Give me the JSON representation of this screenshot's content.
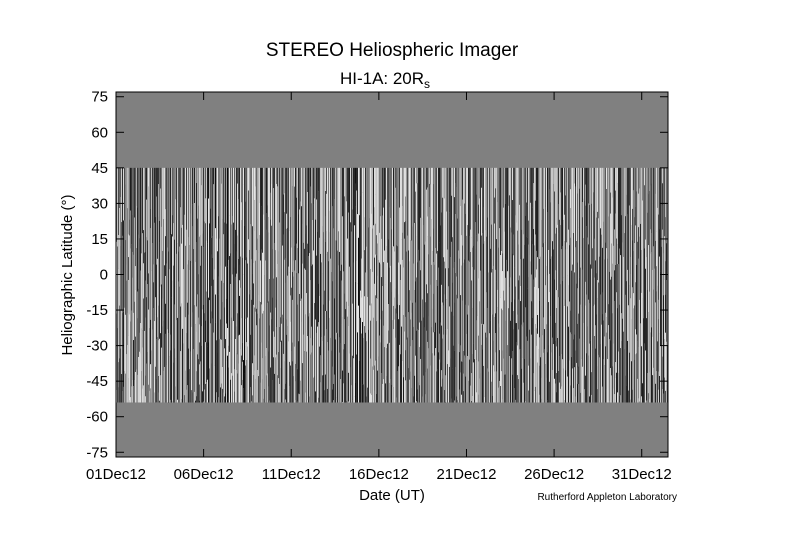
{
  "chart_data": {
    "type": "image",
    "title": "STEREO Heliospheric Imager",
    "subtitle": "HI-1A: 20R",
    "subtitle_subscript": "s",
    "xlabel": "Date (UT)",
    "ylabel": "Heliographic Latitude (°)",
    "credit": "Rutherford Appleton Laboratory",
    "xlim": [
      1,
      32.5
    ],
    "xticks": [
      {
        "value": 1,
        "label": "01Dec12"
      },
      {
        "value": 6,
        "label": "06Dec12"
      },
      {
        "value": 11,
        "label": "11Dec12"
      },
      {
        "value": 16,
        "label": "16Dec12"
      },
      {
        "value": 21,
        "label": "21Dec12"
      },
      {
        "value": 26,
        "label": "26Dec12"
      },
      {
        "value": 31,
        "label": "31Dec12"
      }
    ],
    "ylim": [
      -77,
      77
    ],
    "yticks": [
      75,
      60,
      45,
      30,
      15,
      0,
      -15,
      -30,
      -45,
      -60,
      -75
    ],
    "image_lat_range": [
      -54,
      45
    ],
    "background_color": "#808080"
  }
}
